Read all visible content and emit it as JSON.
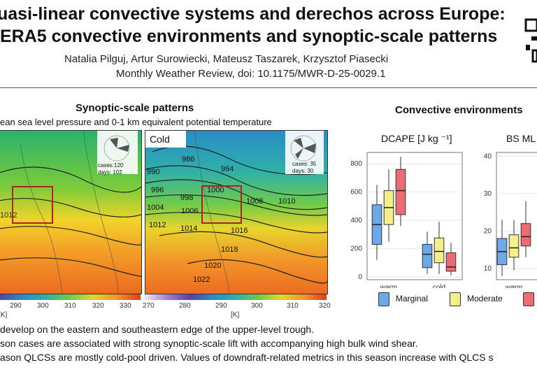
{
  "header": {
    "title_line1": "uasi-linear convective systems and derechos across Europe:",
    "title_line2": "ERA5 convective environments and synoptic-scale patterns",
    "authors": "Natalia Pilguj, Artur Surowiecki, Mateusz Taszarek, Krzysztof Piasecki",
    "citation": "Monthly Weather Review, doi: 10.1175/MWR-D-25-0029.1"
  },
  "synoptic": {
    "title": "Synoptic-scale patterns",
    "subtitle": "ean sea level pressure and 0-1 km equivalent potential temperature",
    "left_map": {
      "cases": "cases:120",
      "days": "days: 102",
      "isobars": [
        "1012"
      ],
      "colorbar_ticks": [
        "290",
        "300",
        "310",
        "320",
        "330"
      ],
      "unit": "[K]"
    },
    "right_map": {
      "label": "Cold",
      "cases": "cases: 35",
      "days": "days: 30",
      "isobars": [
        "986",
        "990",
        "994",
        "996",
        "998",
        "1000",
        "1004",
        "1006",
        "1008",
        "1010",
        "1012",
        "1014",
        "1016",
        "1018",
        "1020",
        "1022"
      ],
      "colorbar_ticks": [
        "270",
        "280",
        "290",
        "300",
        "310",
        "320"
      ],
      "unit": "[K]"
    }
  },
  "convective": {
    "title": "Convective environments",
    "dcape_label": "DCAPE [J kg ⁻¹]",
    "bs_label": "BS ML",
    "legend": [
      "Marginal",
      "Moderate"
    ],
    "colors": {
      "Marginal": "#6fa8e8",
      "Moderate": "#f3f08a",
      "Severe": "#ee6b73"
    }
  },
  "chart_data": [
    {
      "type": "box",
      "title": "DCAPE [J kg ⁻¹]",
      "categories": [
        "warm",
        "cold"
      ],
      "yticks": [
        0,
        200,
        400,
        600,
        800
      ],
      "ylim": [
        -20,
        880
      ],
      "series": [
        {
          "name": "Marginal",
          "boxes": [
            {
              "min": 120,
              "q1": 230,
              "median": 370,
              "q3": 510,
              "max": 650
            },
            {
              "min": 20,
              "q1": 65,
              "median": 160,
              "q3": 230,
              "max": 320
            }
          ]
        },
        {
          "name": "Moderate",
          "boxes": [
            {
              "min": 250,
              "q1": 370,
              "median": 490,
              "q3": 610,
              "max": 760
            },
            {
              "min": 20,
              "q1": 100,
              "median": 180,
              "q3": 275,
              "max": 390
            }
          ]
        },
        {
          "name": "",
          "boxes": [
            {
              "min": 360,
              "q1": 440,
              "median": 610,
              "q3": 760,
              "max": 850
            },
            {
              "min": 10,
              "q1": 40,
              "median": 70,
              "q3": 170,
              "max": 240
            }
          ]
        }
      ]
    },
    {
      "type": "box",
      "title": "BS ML",
      "categories": [
        "warm"
      ],
      "yticks": [
        10,
        20,
        30,
        40
      ],
      "ylim": [
        7,
        41
      ],
      "series": [
        {
          "name": "Marginal",
          "boxes": [
            {
              "min": 8,
              "q1": 11,
              "median": 14.5,
              "q3": 18,
              "max": 23
            }
          ]
        },
        {
          "name": "Moderate",
          "boxes": [
            {
              "min": 9.5,
              "q1": 13,
              "median": 15.5,
              "q3": 19,
              "max": 23
            }
          ]
        },
        {
          "name": "",
          "boxes": [
            {
              "min": 13,
              "q1": 16,
              "median": 18.5,
              "q3": 22,
              "max": 28
            }
          ]
        }
      ]
    }
  ],
  "bullets": [
    "develop on the eastern and southeastern edge of the upper-level trough.",
    "son cases are associated with strong synoptic-scale lift with accompanying high bulk wind shear.",
    "ason QLCSs are mostly cold-pool driven. Values of downdraft-related metrics in this season increase with QLCS s"
  ]
}
